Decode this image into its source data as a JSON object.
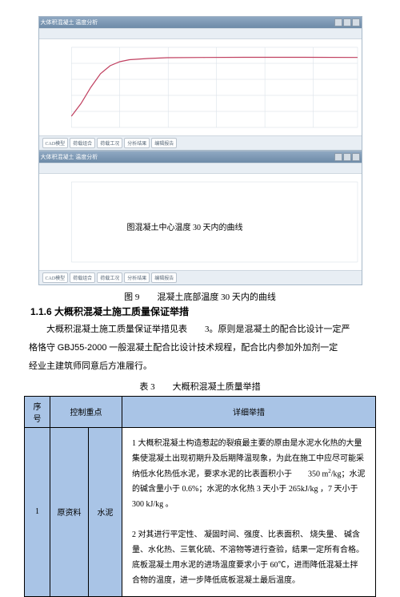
{
  "chart1": {
    "window_title": "大体积混凝土 温度分析",
    "height": 120,
    "axis": {
      "xlim": [
        0,
        30
      ],
      "ylim": [
        0,
        60
      ]
    },
    "curve_color": "#c04060",
    "grid_color": "#d6dee6",
    "bg_color": "#ffffff",
    "points": [
      [
        0,
        8
      ],
      [
        1,
        18
      ],
      [
        2,
        30
      ],
      [
        3,
        40
      ],
      [
        4,
        46
      ],
      [
        5,
        49
      ],
      [
        6,
        50.5
      ],
      [
        8,
        51.5
      ],
      [
        10,
        52
      ],
      [
        14,
        52.2
      ],
      [
        18,
        52.3
      ],
      [
        24,
        52.3
      ],
      [
        30,
        52.2
      ]
    ],
    "tabs": [
      "CAD模型",
      "荷载组合",
      "荷载工况",
      "分析结果",
      "编辑报告"
    ]
  },
  "chart2": {
    "window_title": "大体积混凝土 温度分析",
    "height": 120,
    "annotation": "图混凝土中心温度    30 天内的曲线",
    "axis": {
      "xlim": [
        0,
        30
      ],
      "ylim": [
        0,
        60
      ]
    },
    "grid_color": "#d6dee6",
    "bg_color": "#ffffff",
    "tabs": [
      "CAD模型",
      "荷载组合",
      "荷载工况",
      "分析结果",
      "编辑报告"
    ]
  },
  "fig_caption": {
    "label": "图 9",
    "text": "混凝土底部温度    30 天内的曲线"
  },
  "heading": {
    "number": "1.1.6",
    "text": "大概积混凝土施工质量保证举措"
  },
  "paragraphs": {
    "p1_a": "大概积混凝土施工质量保证举措见表",
    "p1_b": "3。原则是混凝土的配合比设计一定严",
    "p2_a": "格恪守 ",
    "p2_std": "GBJ55-2000",
    "p2_b": " 一般混凝土配合比设计技术规程，配合比内参加外加剂一定",
    "p3": "经业主建筑师同意后方准履行。"
  },
  "table": {
    "caption_label": "表 3",
    "caption_text": "大概积混凝土质量举措",
    "headers": {
      "no": "序号",
      "focus": "控制重点",
      "detail": "详细举措"
    },
    "header_bg": "#a9c4e6",
    "row": {
      "no": "1",
      "focus": "原资料",
      "sub": "水泥",
      "detail_html": "1 大概积混凝土构造惹起的裂痕最主要的原由是水泥水化热的大量集使混凝土出现初期升及后期降温现象，为此在施工中应尽可能采纳低水化热低水泥，要求水泥的比表面积小于　　350 m<span class='sup'>2</span>/kg；水泥的碱含量小于  0.6%；水泥的水化热  3 天小于 265kJ/kg ，7 天小于300 kJ/kg 。<br><br>2 对其进行平定性、  凝固时间、强度、比表面积、  烧失量、  碱含量、水化热、三氧化硫、不溶物等进行查验，结果一定所有合格。底板混凝土用水泥的进场温度要求小于  60℃，进而降低混凝土拌合物的温度，进一步降低底板混凝土最后温度。"
    }
  }
}
